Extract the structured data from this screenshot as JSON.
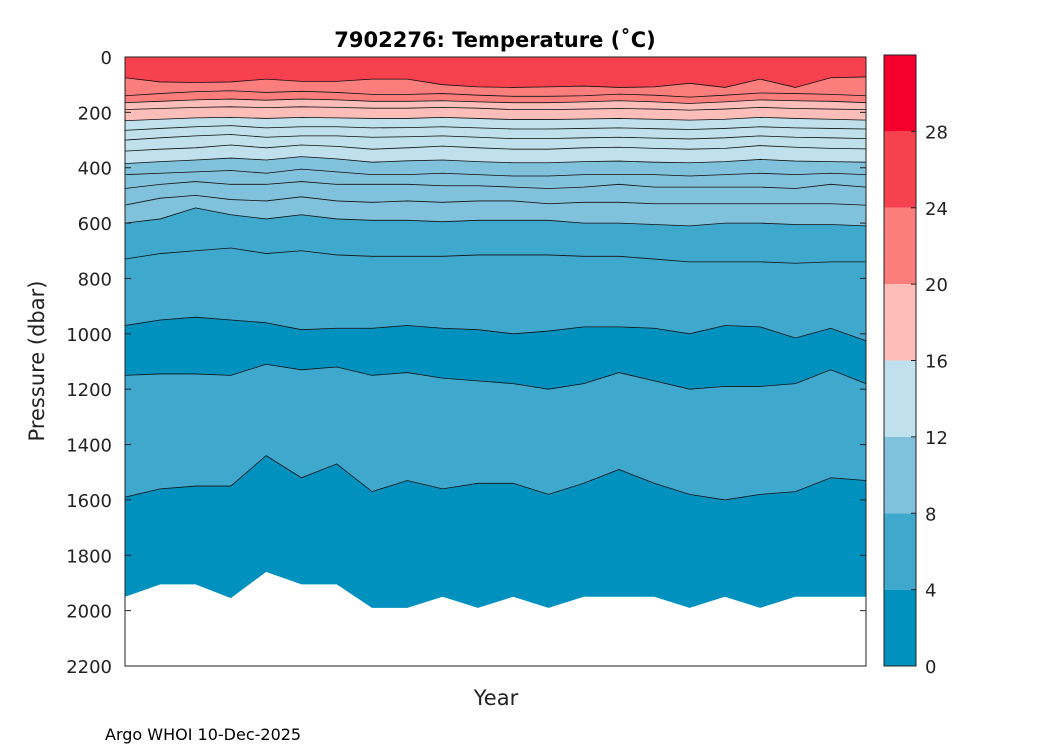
{
  "chart_data": {
    "type": "contour",
    "title": "7902276:  Temperature (˚C)",
    "xlabel": "Year",
    "ylabel": "Pressure (dbar)",
    "ylim": [
      0,
      2200
    ],
    "y_reversed": true,
    "y_ticks": [
      0,
      200,
      400,
      600,
      800,
      1000,
      1200,
      1400,
      1600,
      1800,
      2000,
      2200
    ],
    "colorbar": {
      "range": [
        0,
        32
      ],
      "ticks": [
        0,
        4,
        8,
        12,
        16,
        20,
        24,
        28
      ],
      "bands": [
        {
          "from": 0,
          "to": 4,
          "color": "#0091BF"
        },
        {
          "from": 4,
          "to": 8,
          "color": "#3FA8CD"
        },
        {
          "from": 8,
          "to": 12,
          "color": "#80C1DC"
        },
        {
          "from": 12,
          "to": 16,
          "color": "#BFE0EC"
        },
        {
          "from": 16,
          "to": 20,
          "color": "#FDBEBA"
        },
        {
          "from": 20,
          "to": 24,
          "color": "#FB7E7C"
        },
        {
          "from": 24,
          "to": 28,
          "color": "#F8414F"
        },
        {
          "from": 28,
          "to": 32,
          "color": "#F5002C"
        }
      ]
    },
    "profile_index": [
      0,
      1,
      2,
      3,
      4,
      5,
      6,
      7,
      8,
      9,
      10,
      11,
      12,
      13,
      14,
      15,
      16,
      17,
      18,
      19,
      20,
      21
    ],
    "max_pressure": [
      1950,
      1905,
      1905,
      1955,
      1860,
      1905,
      1905,
      1990,
      1990,
      1950,
      1990,
      1950,
      1990,
      1950,
      1950,
      1950,
      1990,
      1950,
      1990,
      1950,
      1950,
      1950
    ],
    "isotherms": [
      {
        "level": 4,
        "pressure": [
          1590,
          1560,
          1550,
          1550,
          1440,
          1520,
          1470,
          1570,
          1530,
          1560,
          1540,
          1540,
          1580,
          1540,
          1490,
          1540,
          1580,
          1600,
          1580,
          1570,
          1520,
          1530
        ]
      },
      {
        "level": 4,
        "pressure": [
          1150,
          1145,
          1145,
          1150,
          1110,
          1130,
          1120,
          1150,
          1140,
          1160,
          1170,
          1180,
          1200,
          1180,
          1140,
          1170,
          1200,
          1190,
          1190,
          1180,
          1130,
          1180
        ]
      },
      {
        "level": 4,
        "pressure": [
          970,
          950,
          940,
          950,
          960,
          985,
          980,
          980,
          970,
          980,
          985,
          1000,
          990,
          975,
          975,
          980,
          1000,
          970,
          975,
          1015,
          980,
          1025
        ]
      },
      {
        "level": 6,
        "pressure": [
          730,
          710,
          700,
          690,
          710,
          700,
          715,
          720,
          720,
          720,
          715,
          715,
          715,
          720,
          720,
          730,
          740,
          740,
          740,
          745,
          740,
          740
        ]
      },
      {
        "level": 8,
        "pressure": [
          600,
          585,
          545,
          570,
          585,
          570,
          585,
          590,
          590,
          595,
          590,
          590,
          590,
          600,
          600,
          605,
          610,
          600,
          600,
          605,
          605,
          610
        ]
      },
      {
        "level": 9,
        "pressure": [
          535,
          510,
          500,
          515,
          520,
          505,
          520,
          525,
          520,
          525,
          520,
          520,
          530,
          525,
          525,
          530,
          530,
          530,
          530,
          530,
          530,
          535
        ]
      },
      {
        "level": 10,
        "pressure": [
          475,
          460,
          450,
          460,
          460,
          450,
          460,
          460,
          460,
          465,
          465,
          470,
          475,
          470,
          460,
          470,
          470,
          470,
          470,
          475,
          460,
          470
        ]
      },
      {
        "level": 11,
        "pressure": [
          425,
          420,
          415,
          410,
          420,
          405,
          415,
          425,
          425,
          420,
          425,
          430,
          430,
          425,
          425,
          425,
          430,
          425,
          420,
          425,
          420,
          425
        ]
      },
      {
        "level": 12,
        "pressure": [
          385,
          378,
          372,
          365,
          372,
          360,
          368,
          380,
          375,
          372,
          378,
          382,
          382,
          378,
          376,
          380,
          382,
          378,
          370,
          376,
          378,
          380
        ]
      },
      {
        "level": 13,
        "pressure": [
          340,
          333,
          328,
          318,
          328,
          318,
          323,
          333,
          328,
          322,
          328,
          333,
          333,
          328,
          326,
          330,
          333,
          330,
          320,
          326,
          330,
          332
        ]
      },
      {
        "level": 14,
        "pressure": [
          300,
          292,
          285,
          280,
          290,
          285,
          285,
          290,
          288,
          285,
          290,
          295,
          295,
          292,
          290,
          293,
          296,
          292,
          285,
          290,
          292,
          295
        ]
      },
      {
        "level": 15,
        "pressure": [
          265,
          258,
          252,
          248,
          256,
          252,
          252,
          256,
          255,
          252,
          256,
          260,
          260,
          258,
          256,
          259,
          262,
          258,
          252,
          256,
          258,
          260
        ]
      },
      {
        "level": 16,
        "pressure": [
          230,
          225,
          220,
          218,
          222,
          218,
          220,
          222,
          222,
          218,
          222,
          226,
          226,
          224,
          222,
          225,
          228,
          225,
          218,
          222,
          225,
          228
        ]
      },
      {
        "level": 18,
        "pressure": [
          190,
          186,
          182,
          180,
          183,
          180,
          182,
          185,
          185,
          182,
          185,
          190,
          190,
          188,
          186,
          188,
          192,
          188,
          182,
          186,
          188,
          190
        ]
      },
      {
        "level": 20,
        "pressure": [
          165,
          160,
          155,
          152,
          156,
          152,
          155,
          160,
          160,
          158,
          162,
          165,
          165,
          162,
          158,
          162,
          168,
          162,
          155,
          158,
          160,
          165
        ]
      },
      {
        "level": 22,
        "pressure": [
          140,
          132,
          125,
          122,
          128,
          124,
          128,
          135,
          135,
          132,
          138,
          142,
          142,
          140,
          134,
          138,
          145,
          138,
          130,
          132,
          135,
          140
        ]
      },
      {
        "level": 24,
        "pressure": [
          75,
          90,
          92,
          90,
          80,
          88,
          88,
          80,
          80,
          100,
          108,
          110,
          108,
          105,
          110,
          108,
          95,
          110,
          80,
          110,
          75,
          72
        ]
      }
    ]
  },
  "footer": {
    "text": "Argo WHOI 10-Dec-2025"
  }
}
